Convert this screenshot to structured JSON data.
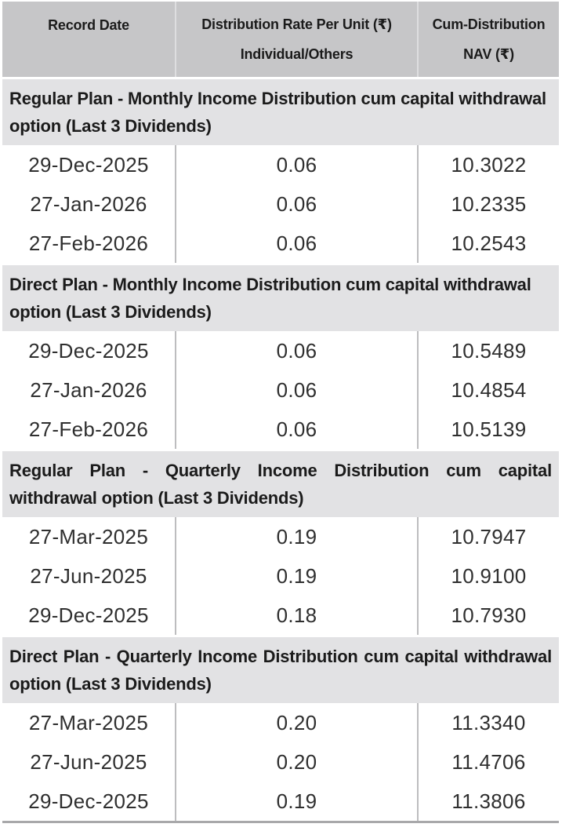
{
  "colors": {
    "header_bg": "#c6c6c8",
    "section_bg": "#e2e2e4",
    "divider": "#bdbdbf",
    "rule": "#a8a8aa"
  },
  "table": {
    "header": {
      "record_date": "Record Date",
      "rate_line1": "Distribution Rate Per Unit (₹)",
      "rate_line2": "Individual/Others",
      "nav": "Cum-Distribution NAV (₹)"
    },
    "sections": [
      {
        "title": "Regular Plan - Monthly Income Distribution cum capital withdrawal option (Last 3 Dividends)",
        "rows": [
          {
            "record_date": "29-Dec-2025",
            "rate": "0.06",
            "nav": "10.3022"
          },
          {
            "record_date": "27-Jan-2026",
            "rate": "0.06",
            "nav": "10.2335"
          },
          {
            "record_date": "27-Feb-2026",
            "rate": "0.06",
            "nav": "10.2543"
          }
        ]
      },
      {
        "title": "Direct Plan - Monthly Income Distribution cum capital withdrawal option (Last 3 Dividends)",
        "rows": [
          {
            "record_date": "29-Dec-2025",
            "rate": "0.06",
            "nav": "10.5489"
          },
          {
            "record_date": "27-Jan-2026",
            "rate": "0.06",
            "nav": "10.4854"
          },
          {
            "record_date": "27-Feb-2026",
            "rate": "0.06",
            "nav": "10.5139"
          }
        ]
      },
      {
        "title": "Regular Plan - Quarterly Income Distribution cum capital withdrawal option (Last 3 Dividends)",
        "rows": [
          {
            "record_date": "27-Mar-2025",
            "rate": "0.19",
            "nav": "10.7947"
          },
          {
            "record_date": "27-Jun-2025",
            "rate": "0.19",
            "nav": "10.9100"
          },
          {
            "record_date": "29-Dec-2025",
            "rate": "0.18",
            "nav": "10.7930"
          }
        ]
      },
      {
        "title": "Direct Plan - Quarterly Income Distribution cum capital withdrawal option (Last 3 Dividends)",
        "rows": [
          {
            "record_date": "27-Mar-2025",
            "rate": "0.20",
            "nav": "11.3340"
          },
          {
            "record_date": "27-Jun-2025",
            "rate": "0.20",
            "nav": "11.4706"
          },
          {
            "record_date": "29-Dec-2025",
            "rate": "0.19",
            "nav": "11.3806"
          }
        ]
      }
    ]
  }
}
